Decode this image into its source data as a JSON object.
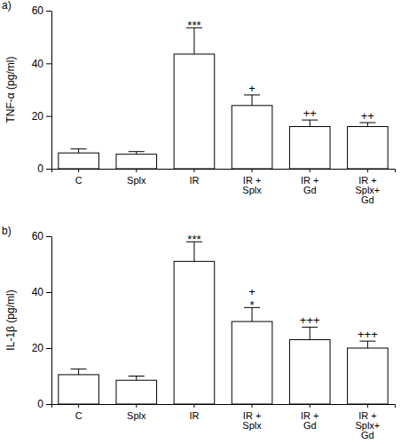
{
  "chart_data": [
    {
      "type": "bar",
      "title": "a)",
      "y_label": "TNF-α (pg/ml)",
      "categories": [
        "C",
        "Splx",
        "IR",
        "IR +\nSplx",
        "IR +\nGd",
        "IR +\nSplx+\nGd"
      ],
      "values": [
        6,
        5.5,
        43.5,
        24,
        16,
        16
      ],
      "errors": [
        1.5,
        1,
        10,
        4,
        2.5,
        1.5
      ],
      "annotations": [
        null,
        null,
        "***",
        "+",
        "++",
        "++"
      ],
      "color": "#ffffff",
      "ylim": [
        0,
        60
      ],
      "yticks": [
        0,
        20,
        40,
        60
      ]
    },
    {
      "type": "bar",
      "title": "b)",
      "y_label": "IL-1β (pg/ml)",
      "categories": [
        "C",
        "Splx",
        "IR",
        "IR +\nSplx",
        "IR +\nGd",
        "IR +\nSplx+\nGd"
      ],
      "values": [
        10.5,
        8.5,
        51,
        29.5,
        23,
        20
      ],
      "errors": [
        2,
        1.5,
        7,
        5,
        4.5,
        2.5
      ],
      "annotations": [
        null,
        null,
        "***",
        "+\n*",
        "+++",
        "+++"
      ],
      "color": "#ffffff",
      "ylim": [
        0,
        60
      ],
      "yticks": [
        0,
        20,
        40,
        60
      ]
    }
  ]
}
